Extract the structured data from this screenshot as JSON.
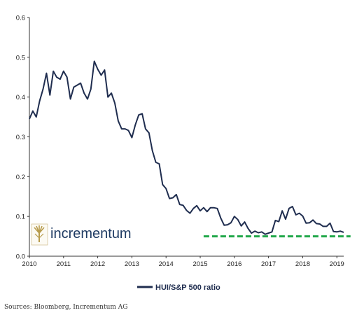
{
  "chart_data": {
    "type": "line",
    "title": "",
    "xlabel": "",
    "ylabel": "",
    "xlim": [
      2010,
      2019.2
    ],
    "ylim": [
      0,
      0.6
    ],
    "grid": false,
    "legend_placement": "bottom",
    "x_ticks": [
      2010,
      2011,
      2012,
      2013,
      2014,
      2015,
      2016,
      2017,
      2018,
      2019
    ],
    "x_tick_labels": [
      "2010",
      "2011",
      "2012",
      "2013",
      "2014",
      "2015",
      "2016",
      "2017",
      "2018",
      "2019"
    ],
    "y_ticks": [
      0,
      0.1,
      0.2,
      0.3,
      0.4,
      0.5,
      0.6
    ],
    "y_tick_labels": [
      "0.0",
      "0.1",
      "0.2",
      "0.3",
      "0.4",
      "0.5",
      "0.6"
    ],
    "series": [
      {
        "name": "HUI/S&P 500 ratio",
        "color": "#1f2d4f",
        "x": [
          2010.0,
          2010.1,
          2010.2,
          2010.3,
          2010.4,
          2010.5,
          2010.6,
          2010.7,
          2010.8,
          2010.9,
          2011.0,
          2011.1,
          2011.2,
          2011.3,
          2011.4,
          2011.5,
          2011.6,
          2011.7,
          2011.8,
          2011.9,
          2012.0,
          2012.1,
          2012.2,
          2012.3,
          2012.4,
          2012.5,
          2012.6,
          2012.7,
          2012.8,
          2012.9,
          2013.0,
          2013.1,
          2013.2,
          2013.3,
          2013.4,
          2013.5,
          2013.6,
          2013.7,
          2013.8,
          2013.9,
          2014.0,
          2014.1,
          2014.2,
          2014.3,
          2014.4,
          2014.5,
          2014.6,
          2014.7,
          2014.8,
          2014.9,
          2015.0,
          2015.1,
          2015.2,
          2015.3,
          2015.4,
          2015.5,
          2015.6,
          2015.7,
          2015.8,
          2015.9,
          2016.0,
          2016.1,
          2016.2,
          2016.3,
          2016.4,
          2016.5,
          2016.6,
          2016.7,
          2016.8,
          2016.9,
          2017.0,
          2017.1,
          2017.2,
          2017.3,
          2017.4,
          2017.5,
          2017.6,
          2017.7,
          2017.8,
          2017.9,
          2018.0,
          2018.1,
          2018.2,
          2018.3,
          2018.4,
          2018.5,
          2018.6,
          2018.7,
          2018.8,
          2018.9,
          2019.0,
          2019.1,
          2019.2
        ],
        "values": [
          0.345,
          0.365,
          0.35,
          0.39,
          0.42,
          0.46,
          0.405,
          0.465,
          0.45,
          0.445,
          0.465,
          0.45,
          0.395,
          0.425,
          0.43,
          0.435,
          0.41,
          0.395,
          0.42,
          0.49,
          0.47,
          0.455,
          0.468,
          0.4,
          0.41,
          0.385,
          0.34,
          0.32,
          0.32,
          0.316,
          0.298,
          0.33,
          0.355,
          0.358,
          0.32,
          0.31,
          0.265,
          0.236,
          0.232,
          0.18,
          0.17,
          0.145,
          0.147,
          0.155,
          0.13,
          0.128,
          0.115,
          0.108,
          0.12,
          0.127,
          0.114,
          0.122,
          0.112,
          0.122,
          0.122,
          0.12,
          0.096,
          0.078,
          0.079,
          0.084,
          0.1,
          0.092,
          0.076,
          0.086,
          0.07,
          0.058,
          0.063,
          0.059,
          0.061,
          0.055,
          0.058,
          0.061,
          0.09,
          0.087,
          0.114,
          0.093,
          0.12,
          0.125,
          0.104,
          0.108,
          0.101,
          0.083,
          0.084,
          0.091,
          0.082,
          0.081,
          0.075,
          0.075,
          0.083,
          0.062,
          0.061,
          0.063,
          0.06
        ]
      }
    ],
    "reference_lines": [
      {
        "color": "#22a84a",
        "x_start": 2015.1,
        "x_end": 2019.4,
        "y": 0.05
      }
    ]
  },
  "logo": {
    "text": "incrementum",
    "icon": "wheat-tree-icon",
    "colors": {
      "text": "#1f3b63",
      "icon": "#b79b4b"
    }
  },
  "legend": {
    "label": "HUI/S&P 500 ratio"
  },
  "source_note": "Sources: Bloomberg, Incrementum AG"
}
